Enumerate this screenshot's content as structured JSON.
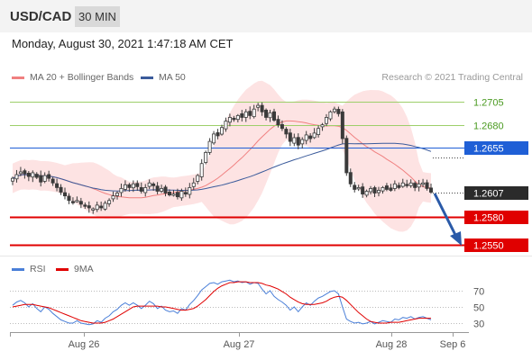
{
  "header": {
    "symbol": "USD/CAD",
    "timeframe": "30 MIN"
  },
  "datetime": "Monday, August 30, 2021 1:47:18 AM CET",
  "legend": {
    "ma20_bb": "MA 20 + Bollinger Bands",
    "ma50": "MA 50",
    "credit": "Research © 2021 Trading Central"
  },
  "rsi_legend": {
    "rsi": "RSI",
    "ma9": "9MA"
  },
  "colors": {
    "candle": "#3a3a3a",
    "bollinger_fill": "#fcdcdc",
    "ma20": "#f08080",
    "ma50": "#3b5b9b",
    "resistance": "#9dcf6a",
    "pivot": "#1f5fd6",
    "support": "#e00000",
    "arrow": "#2a5aa8",
    "rsi": "#4a7fd8",
    "rsi_ma": "#e00000"
  },
  "chart_data": [
    {
      "type": "candlestick",
      "price_levels": [
        {
          "value": 1.2705,
          "label": "1.2705",
          "kind": "resistance"
        },
        {
          "value": 1.268,
          "label": "1.2680",
          "kind": "resistance"
        },
        {
          "value": 1.2655,
          "label": "1.2655",
          "kind": "pivot"
        },
        {
          "value": 1.2607,
          "label": "1.2607",
          "kind": "last"
        },
        {
          "value": 1.258,
          "label": "1.2580",
          "kind": "support"
        },
        {
          "value": 1.255,
          "label": "1.2550",
          "kind": "support"
        }
      ],
      "x_ticks": [
        "Aug 26",
        "Aug 27",
        "Aug 28",
        "Sep 6"
      ],
      "closes": [
        1.2622,
        1.2626,
        1.2629,
        1.2627,
        1.2624,
        1.2628,
        1.2623,
        1.2618,
        1.2625,
        1.2622,
        1.2617,
        1.2612,
        1.2607,
        1.2603,
        1.2598,
        1.2596,
        1.2598,
        1.2594,
        1.2592,
        1.259,
        1.2589,
        1.2593,
        1.259,
        1.2595,
        1.2598,
        1.2603,
        1.2606,
        1.2611,
        1.2615,
        1.2612,
        1.2616,
        1.2613,
        1.2608,
        1.2612,
        1.2617,
        1.2614,
        1.2608,
        1.2611,
        1.2606,
        1.2604,
        1.2605,
        1.2602,
        1.2608,
        1.2605,
        1.2612,
        1.2617,
        1.2625,
        1.2638,
        1.265,
        1.2662,
        1.267,
        1.2668,
        1.2677,
        1.2684,
        1.2688,
        1.2687,
        1.269,
        1.2688,
        1.2694,
        1.269,
        1.2697,
        1.2701,
        1.2694,
        1.2688,
        1.2693,
        1.2685,
        1.268,
        1.2676,
        1.267,
        1.2662,
        1.2666,
        1.2658,
        1.2664,
        1.2669,
        1.2665,
        1.2671,
        1.2676,
        1.268,
        1.2688,
        1.2694,
        1.2697,
        1.2692,
        1.2665,
        1.2628,
        1.2616,
        1.261,
        1.2612,
        1.2605,
        1.2608,
        1.2611,
        1.2606,
        1.2609,
        1.2612,
        1.261,
        1.2609,
        1.2616,
        1.2612,
        1.2617,
        1.2614,
        1.2617,
        1.2612,
        1.2616,
        1.2617,
        1.2611,
        1.2607
      ],
      "rsi_ticks": [
        70,
        50,
        30
      ],
      "rsi": [
        52,
        56,
        58,
        55,
        50,
        54,
        48,
        44,
        50,
        47,
        42,
        38,
        34,
        32,
        30,
        30,
        33,
        30,
        29,
        28,
        29,
        33,
        31,
        36,
        39,
        44,
        47,
        52,
        55,
        52,
        55,
        52,
        48,
        52,
        57,
        54,
        48,
        51,
        46,
        44,
        45,
        42,
        48,
        46,
        53,
        58,
        64,
        71,
        75,
        79,
        80,
        78,
        81,
        82,
        83,
        81,
        82,
        80,
        81,
        78,
        80,
        79,
        72,
        66,
        70,
        63,
        59,
        56,
        52,
        46,
        50,
        44,
        50,
        55,
        52,
        57,
        61,
        63,
        66,
        69,
        70,
        66,
        50,
        35,
        32,
        30,
        31,
        29,
        30,
        32,
        29,
        31,
        33,
        32,
        31,
        35,
        34,
        37,
        36,
        38,
        35,
        37,
        38,
        36,
        34
      ],
      "rsi_ma": [
        50,
        51,
        52,
        53,
        53,
        53,
        52,
        51,
        50,
        49,
        47,
        45,
        43,
        41,
        39,
        37,
        35,
        33,
        32,
        31,
        30,
        30,
        30,
        31,
        33,
        35,
        38,
        41,
        44,
        47,
        50,
        51,
        51,
        51,
        51,
        51,
        51,
        50,
        50,
        49,
        48,
        47,
        46,
        46,
        47,
        48,
        51,
        55,
        59,
        64,
        69,
        73,
        76,
        78,
        80,
        80,
        81,
        81,
        81,
        80,
        80,
        80,
        79,
        77,
        76,
        74,
        72,
        69,
        66,
        62,
        59,
        56,
        54,
        53,
        53,
        53,
        54,
        55,
        57,
        60,
        62,
        63,
        62,
        58,
        53,
        48,
        43,
        39,
        35,
        32,
        31,
        30,
        30,
        30,
        31,
        31,
        31,
        32,
        33,
        34,
        35,
        36,
        36,
        36,
        36
      ]
    }
  ]
}
